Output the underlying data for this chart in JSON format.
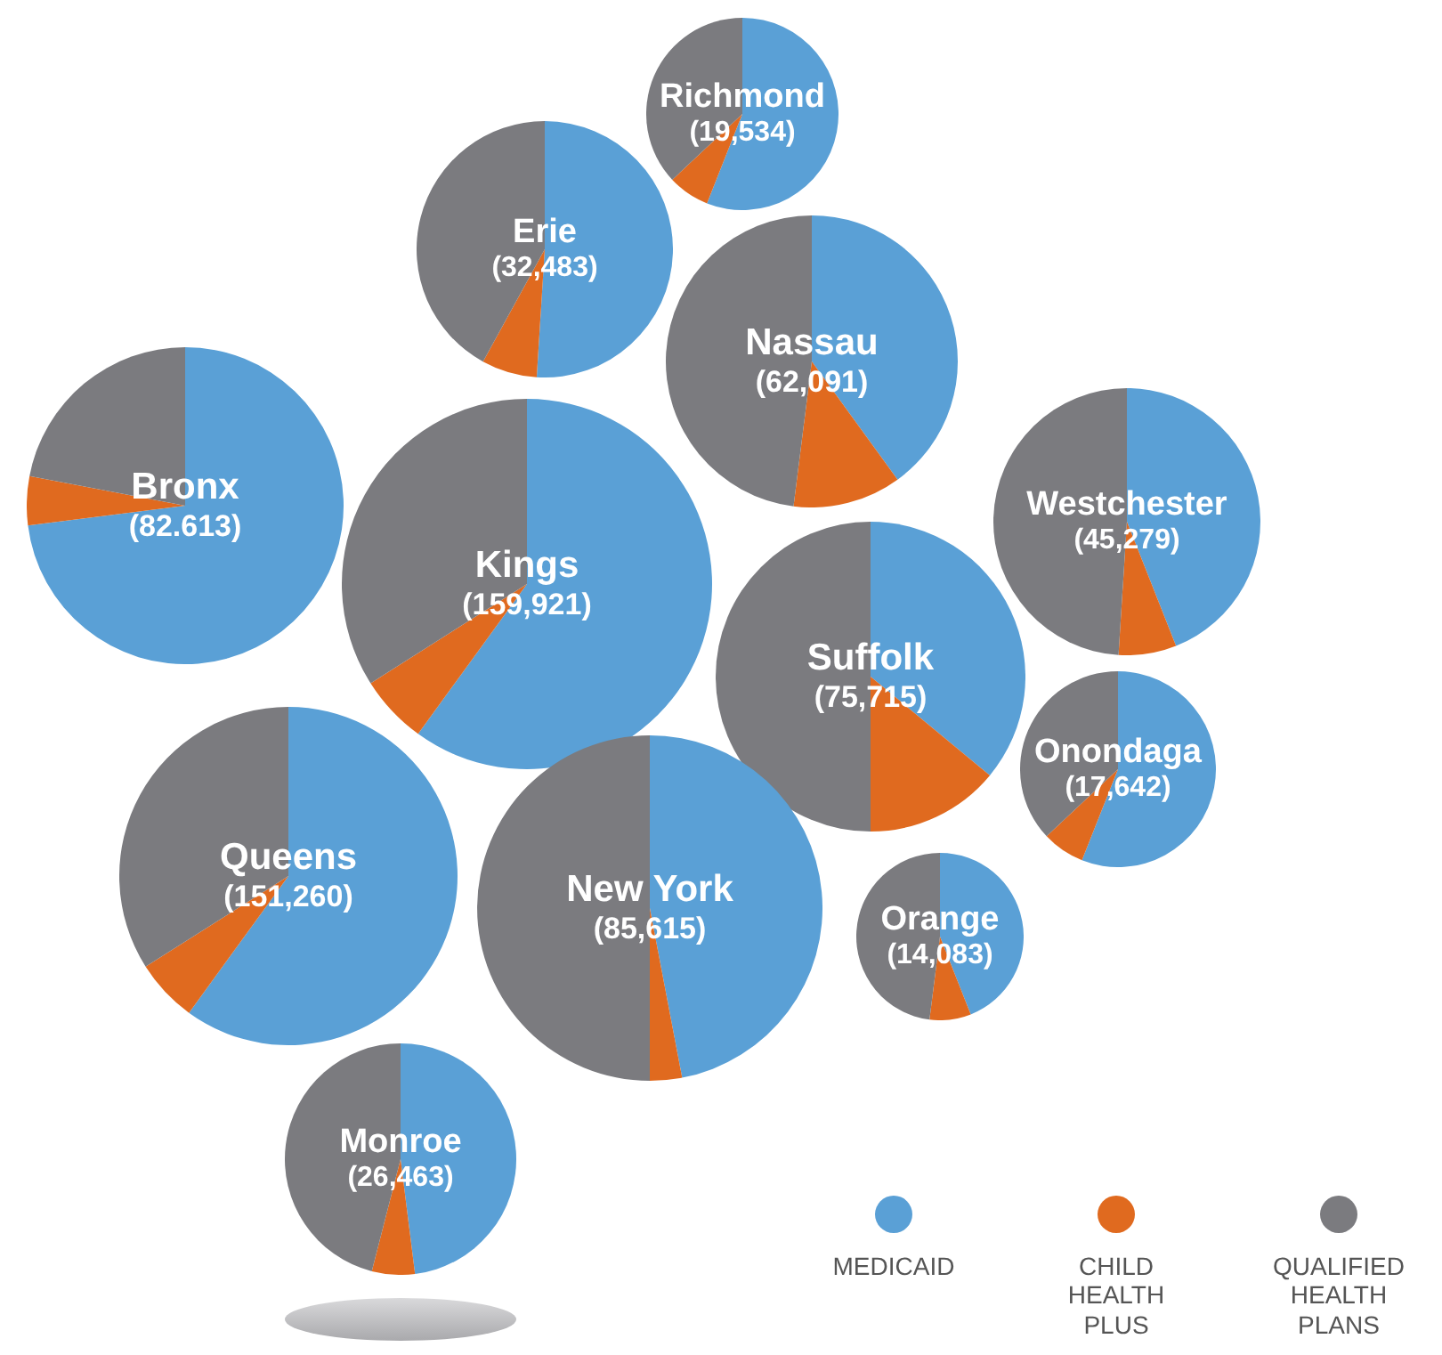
{
  "chart_data": [
    {
      "type": "pie",
      "title": "Richmond",
      "subtitle": "(19,534)",
      "categories": [
        "MEDICAID",
        "CHILD HEALTH PLUS",
        "QUALIFIED HEALTH PLANS"
      ],
      "values": [
        56,
        7,
        37
      ],
      "colors": [
        "#5aa0d6",
        "#e06a1f",
        "#7b7b7f"
      ],
      "legend": "bottom right"
    },
    {
      "type": "pie",
      "title": "Erie",
      "subtitle": "(32,483)",
      "values": [
        51,
        7,
        42
      ],
      "colors": [
        "#5aa0d6",
        "#e06a1f",
        "#7b7b7f"
      ]
    },
    {
      "type": "pie",
      "title": "Nassau",
      "subtitle": "(62,091)",
      "values": [
        40,
        12,
        48
      ],
      "colors": [
        "#5aa0d6",
        "#e06a1f",
        "#7b7b7f"
      ]
    },
    {
      "type": "pie",
      "title": "Bronx",
      "subtitle": "(82.613)",
      "values": [
        73,
        5,
        22
      ],
      "colors": [
        "#5aa0d6",
        "#e06a1f",
        "#7b7b7f"
      ]
    },
    {
      "type": "pie",
      "title": "Kings",
      "subtitle": "(159,921)",
      "values": [
        60,
        6,
        34
      ],
      "colors": [
        "#5aa0d6",
        "#e06a1f",
        "#7b7b7f"
      ]
    },
    {
      "type": "pie",
      "title": "Westchester",
      "subtitle": "(45,279)",
      "values": [
        44,
        7,
        49
      ],
      "colors": [
        "#5aa0d6",
        "#e06a1f",
        "#7b7b7f"
      ]
    },
    {
      "type": "pie",
      "title": "Suffolk",
      "subtitle": "(75,715)",
      "values": [
        36,
        14,
        50
      ],
      "colors": [
        "#5aa0d6",
        "#e06a1f",
        "#7b7b7f"
      ]
    },
    {
      "type": "pie",
      "title": "Onondaga",
      "subtitle": "(17,642)",
      "values": [
        56,
        7,
        37
      ],
      "colors": [
        "#5aa0d6",
        "#e06a1f",
        "#7b7b7f"
      ]
    },
    {
      "type": "pie",
      "title": "Queens",
      "subtitle": "(151,260)",
      "values": [
        60,
        6,
        34
      ],
      "colors": [
        "#5aa0d6",
        "#e06a1f",
        "#7b7b7f"
      ]
    },
    {
      "type": "pie",
      "title": "New York",
      "subtitle": "(85,615)",
      "values": [
        47,
        3,
        50
      ],
      "colors": [
        "#5aa0d6",
        "#e06a1f",
        "#7b7b7f"
      ]
    },
    {
      "type": "pie",
      "title": "Orange",
      "subtitle": "(14,083)",
      "values": [
        44,
        8,
        48
      ],
      "colors": [
        "#5aa0d6",
        "#e06a1f",
        "#7b7b7f"
      ]
    },
    {
      "type": "pie",
      "title": "Monroe",
      "subtitle": "(26,463)",
      "values": [
        48,
        6,
        46
      ],
      "colors": [
        "#5aa0d6",
        "#e06a1f",
        "#7b7b7f"
      ]
    }
  ]
}
